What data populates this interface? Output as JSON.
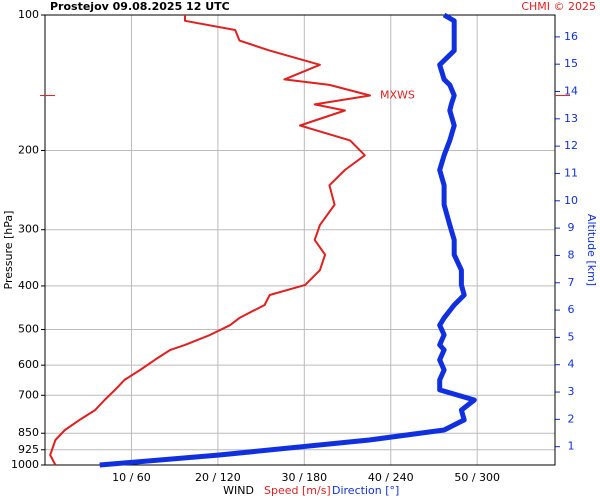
{
  "chart_data": {
    "type": "line",
    "title": "Prostejov    09.08.2025 12 UTC",
    "credit": "CHMI © 2025",
    "y_label": "Pressure [hPa]",
    "y2_label": "Altitude [km]",
    "x_label": "WIND",
    "x_label_speed": "Speed [m/s]",
    "x_label_direction": "Direction [°]",
    "log_y": true,
    "grid": true,
    "ylim": [
      1000,
      100
    ],
    "yticks": [
      100,
      200,
      300,
      400,
      500,
      600,
      700,
      850,
      925,
      1000
    ],
    "y2lim": [
      0.33,
      16.8
    ],
    "y2ticks": [
      1,
      2,
      3,
      4,
      5,
      6,
      7,
      8,
      9,
      10,
      11,
      12,
      13,
      14,
      15,
      16
    ],
    "xlim": [
      0,
      59
    ],
    "x2lim": [
      0,
      354
    ],
    "xticks": [
      {
        "value": 10,
        "label": "10 / 60"
      },
      {
        "value": 20,
        "label": "20 / 120"
      },
      {
        "value": 30,
        "label": "30 / 180"
      },
      {
        "value": 40,
        "label": "40 / 240"
      },
      {
        "value": 50,
        "label": "50 / 300"
      }
    ],
    "annotation": {
      "text": "MXWS",
      "pressure": 151,
      "color": "#e02020"
    },
    "y": [
      1000,
      950,
      880,
      836,
      794,
      755,
      717,
      681,
      647,
      615,
      584,
      555,
      541,
      514,
      489,
      471,
      441,
      419,
      398,
      369,
      341,
      316,
      293,
      264,
      239,
      221,
      205,
      190,
      176,
      163,
      158,
      151,
      143,
      139,
      129,
      120,
      114,
      108,
      103,
      100
    ],
    "series": [
      {
        "name": "Speed [m/s]",
        "color": "#e02020",
        "axis": "x",
        "width": 2,
        "values": [
          1.2,
          0.6,
          1.2,
          2.3,
          4.0,
          5.8,
          6.9,
          8.1,
          9.2,
          11.0,
          12.7,
          14.5,
          16.2,
          19.1,
          21.4,
          22.5,
          25.4,
          26.0,
          30.1,
          31.8,
          32.4,
          31.2,
          31.8,
          33.5,
          32.9,
          34.7,
          37.0,
          35.3,
          29.5,
          34.7,
          31.2,
          37.6,
          32.9,
          27.7,
          31.8,
          26.0,
          22.5,
          22.0,
          16.2,
          16.2
        ]
      },
      {
        "name": "Direction [°]",
        "color": "#1030e0",
        "axis": "x2",
        "width": 5,
        "values": [
          38,
          121,
          225,
          277,
          291,
          289,
          298,
          274,
          274,
          277,
          274,
          277,
          274,
          277,
          274,
          277,
          284,
          291,
          289,
          289,
          284,
          284,
          281,
          277,
          277,
          274,
          277,
          281,
          284,
          281,
          282,
          284,
          281,
          277,
          274,
          284,
          284,
          284,
          284,
          277
        ]
      }
    ]
  }
}
